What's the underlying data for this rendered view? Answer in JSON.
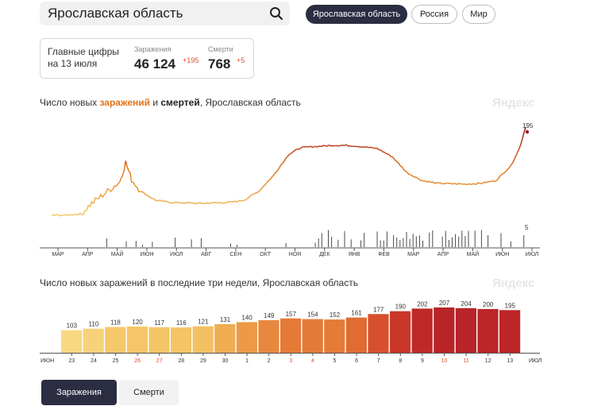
{
  "search": {
    "value": "Ярославская область"
  },
  "region_tabs": {
    "active": "Ярославская область",
    "russia": "Россия",
    "world": "Мир"
  },
  "summary": {
    "caption": "Главные цифры на 13 июля",
    "infections_label": "Заражения",
    "infections_value": "46 124",
    "infections_delta": "+195",
    "deaths_label": "Смерти",
    "deaths_value": "768",
    "deaths_delta": "+5"
  },
  "chart1": {
    "title_part1": "Число новых ",
    "title_inf": "заражений",
    "title_part2": " и ",
    "title_dead": "смертей",
    "title_part3": ", Ярославская область",
    "watermark": "Яндекс",
    "last_infections_label": "195",
    "last_deaths_label": "5"
  },
  "chart2": {
    "title": "Число новых заражений в последние три недели, Ярославская область",
    "watermark": "Яндекс"
  },
  "bottom_tabs": {
    "infections": "Заражения",
    "deaths": "Смерти"
  },
  "colors": {
    "dark": "#2b2d42",
    "accent": "#e0731b",
    "bar_light": "#f7d27a",
    "bar_dark": "#b8202a"
  },
  "chart_data": [
    {
      "type": "line",
      "title": "Число новых заражений и смертей, Ярославская область",
      "x_ticks": [
        "МАР",
        "АПР",
        "МАЙ",
        "ИЮН",
        "ИЮЛ",
        "АВГ",
        "СЕН",
        "ОКТ",
        "НОЯ",
        "ДЕК",
        "ЯНВ",
        "ФЕВ",
        "МАР",
        "АПР",
        "МАЙ",
        "ИЮН",
        "ИЮЛ"
      ],
      "series": [
        {
          "name": "заражений",
          "points": [
            [
              0,
              2
            ],
            [
              0.5,
              2
            ],
            [
              1,
              5
            ],
            [
              1.3,
              25
            ],
            [
              1.6,
              40
            ],
            [
              2,
              60
            ],
            [
              2.3,
              75
            ],
            [
              2.5,
              118
            ],
            [
              2.7,
              80
            ],
            [
              3,
              55
            ],
            [
              3.5,
              35
            ],
            [
              4,
              30
            ],
            [
              5,
              28
            ],
            [
              6,
              30
            ],
            [
              6.5,
              35
            ],
            [
              7,
              55
            ],
            [
              7.5,
              90
            ],
            [
              8,
              135
            ],
            [
              8.4,
              150
            ],
            [
              8.8,
              152
            ],
            [
              9.5,
              155
            ],
            [
              10,
              155
            ],
            [
              10.5,
              152
            ],
            [
              11,
              148
            ],
            [
              11.5,
              130
            ],
            [
              12,
              95
            ],
            [
              12.5,
              78
            ],
            [
              13,
              72
            ],
            [
              14,
              70
            ],
            [
              14.5,
              72
            ],
            [
              15,
              78
            ],
            [
              15.5,
              110
            ],
            [
              15.8,
              150
            ],
            [
              16,
              195
            ]
          ]
        },
        {
          "name": "смертей",
          "last_value": 5
        }
      ]
    },
    {
      "type": "bar",
      "title": "Число новых заражений в последние три недели, Ярославская область",
      "categories": [
        "23",
        "24",
        "25",
        "26",
        "27",
        "28",
        "29",
        "30",
        "1",
        "2",
        "3",
        "4",
        "5",
        "6",
        "7",
        "8",
        "9",
        "10",
        "11",
        "12",
        "13"
      ],
      "values": [
        103,
        110,
        118,
        120,
        117,
        116,
        121,
        131,
        140,
        149,
        157,
        154,
        152,
        161,
        177,
        190,
        202,
        207,
        204,
        200,
        195
      ],
      "month_labels": [
        "ИЮН",
        "ИЮЛ"
      ],
      "weekend_days": [
        "26",
        "27",
        "3",
        "4",
        "10",
        "11"
      ]
    }
  ]
}
